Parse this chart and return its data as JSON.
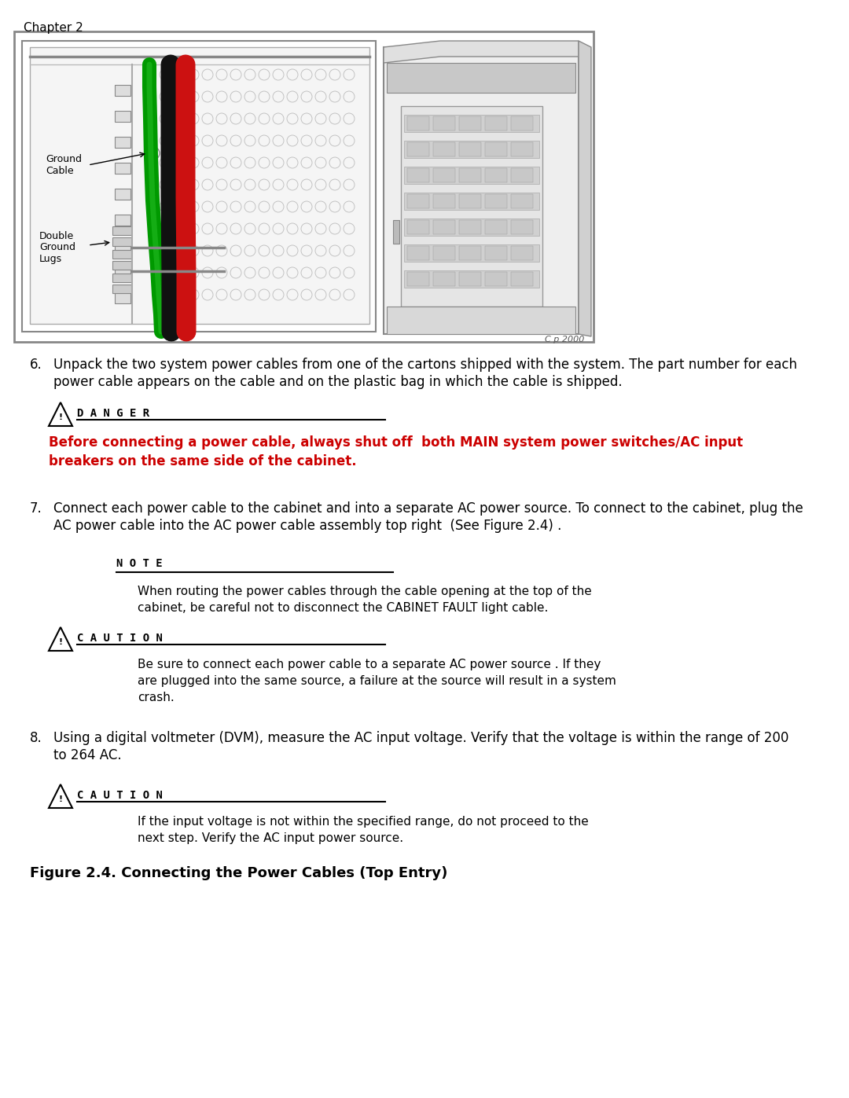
{
  "page_header": "Chapter 2",
  "figure_caption": "Figure 2.4. Connecting the Power Cables (Top Entry)",
  "figure_watermark": "C p 2000",
  "step6_number": "6.",
  "step6_text": "Unpack the two system power cables from one of the cartons shipped with the system. The part number for each\npower cable appears on the cable and on the plastic bag in which the cable is shipped.",
  "danger_label": "D A N G E R",
  "danger_text_line1": "Before connecting a power cable, always shut off  both MAIN system power switches/AC input",
  "danger_text_line2": "breakers on the same side of the cabinet.",
  "step7_number": "7.",
  "step7_text": "Connect each power cable to the cabinet and into a separate AC power source. To connect to the cabinet, plug the\nAC power cable into the AC power cable assembly top right  (See Figure 2.4) .",
  "note_label": "N O T E",
  "note_text": "When routing the power cables through the cable opening at the top of the\ncabinet, be careful not to disconnect the CABINET FAULT light cable.",
  "caution1_label": "C A U T I O N",
  "caution1_text": "Be sure to connect each power cable to a separate AC power source . If they\nare plugged into the same source, a failure at the source will result in a system\ncrash.",
  "step8_number": "8.",
  "step8_text": "Using a digital voltmeter (DVM), measure the AC input voltage. Verify that the voltage is within the range of 200\nto 264 AC.",
  "caution2_label": "C A U T I O N",
  "caution2_text": "If the input voltage is not within the specified range, do not proceed to the\nnext step. Verify the AC input power source.",
  "label_ground_cable": "Ground\nCable",
  "label_double_ground": "Double\nGround\nLugs",
  "bg_color": "#ffffff",
  "text_color": "#000000",
  "danger_color": "#cc0000",
  "figure_box_color": "#999999",
  "inner_box_color": "#aaaaaa"
}
